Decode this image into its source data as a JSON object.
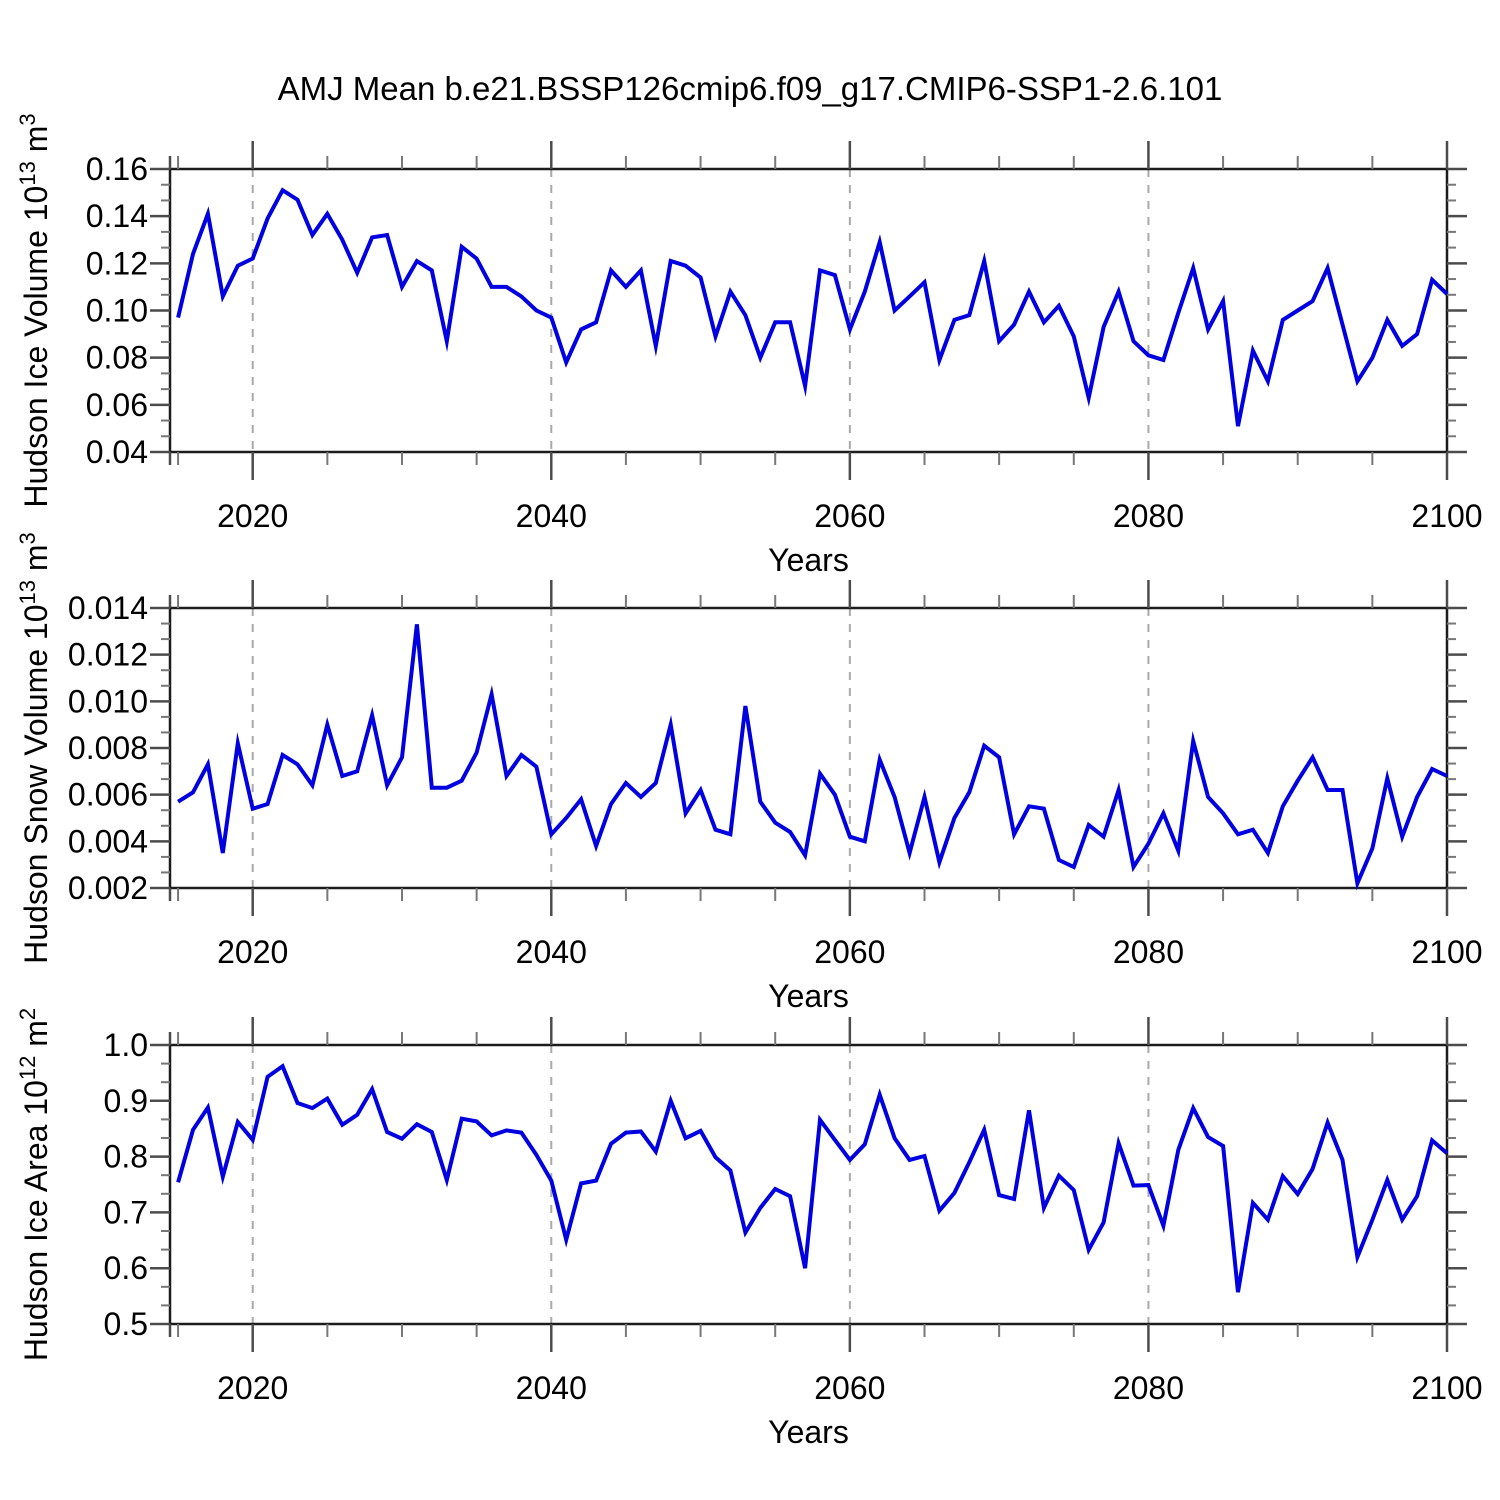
{
  "page": {
    "title": "AMJ Mean b.e21.BSSP126cmip6.f09_g17.CMIP6-SSP1-2.6.101",
    "background": "#ffffff",
    "text_color": "#000000"
  },
  "chart_data": [
    {
      "id": "hudson-ice-volume",
      "type": "line",
      "title": "AMJ Mean b.e21.BSSP126cmip6.f09_g17.CMIP6-SSP1-2.6.101",
      "ylabel": "Hudson Ice Volume 10^13 m^3",
      "xlabel": "Years",
      "x_start": 2015,
      "x_end": 2100,
      "x_step": 1,
      "values": [
        0.097,
        0.124,
        0.141,
        0.106,
        0.119,
        0.122,
        0.139,
        0.151,
        0.147,
        0.132,
        0.141,
        0.13,
        0.116,
        0.131,
        0.132,
        0.11,
        0.121,
        0.117,
        0.087,
        0.127,
        0.122,
        0.11,
        0.11,
        0.106,
        0.1,
        0.097,
        0.078,
        0.092,
        0.095,
        0.117,
        0.11,
        0.117,
        0.085,
        0.121,
        0.119,
        0.114,
        0.089,
        0.108,
        0.098,
        0.08,
        0.095,
        0.095,
        0.068,
        0.117,
        0.115,
        0.092,
        0.108,
        0.129,
        0.1,
        0.106,
        0.112,
        0.079,
        0.096,
        0.098,
        0.121,
        0.087,
        0.094,
        0.108,
        0.095,
        0.102,
        0.089,
        0.063,
        0.093,
        0.108,
        0.087,
        0.081,
        0.079,
        0.099,
        0.118,
        0.092,
        0.104,
        0.051,
        0.083,
        0.07,
        0.096,
        0.1,
        0.104,
        0.118,
        0.094,
        0.07,
        0.08,
        0.096,
        0.085,
        0.09,
        0.113,
        0.107
      ],
      "ylim": [
        0.04,
        0.16
      ],
      "xlim": [
        2014.46,
        2100
      ],
      "yticks": [
        0.04,
        0.06,
        0.08,
        0.1,
        0.12,
        0.14,
        0.16
      ],
      "ytick_labels": [
        "0.04",
        "0.06",
        "0.08",
        "0.10",
        "0.12",
        "0.14",
        "0.16"
      ],
      "xticks": [
        2020,
        2040,
        2060,
        2080,
        2100
      ],
      "xtick_labels": [
        "2020",
        "2040",
        "2060",
        "2080",
        "2100"
      ],
      "x_minor_step": 5,
      "y_minor_divisions": 3,
      "gridline_years": [
        2020,
        2040,
        2060,
        2080
      ],
      "grid_on": true,
      "legend": "none",
      "line_color": "#0000e0",
      "grid_color": "#a9a9a9",
      "axis_color": "#1c1c1c",
      "tick_color": "#4c4c4c"
    },
    {
      "id": "hudson-snow-volume",
      "type": "line",
      "title": "",
      "ylabel": "Hudson Snow Volume 10^13 m^3",
      "xlabel": "Years",
      "x_start": 2015,
      "x_end": 2100,
      "x_step": 1,
      "values": [
        0.0057,
        0.0061,
        0.0073,
        0.0035,
        0.0082,
        0.0054,
        0.0056,
        0.0077,
        0.0073,
        0.0064,
        0.009,
        0.0068,
        0.007,
        0.0094,
        0.0064,
        0.0076,
        0.0133,
        0.0063,
        0.0063,
        0.0066,
        0.0078,
        0.0103,
        0.0068,
        0.0077,
        0.0072,
        0.0043,
        0.005,
        0.0058,
        0.0038,
        0.0056,
        0.0065,
        0.0059,
        0.0065,
        0.009,
        0.0052,
        0.0062,
        0.0045,
        0.0043,
        0.0098,
        0.0057,
        0.0048,
        0.0044,
        0.0034,
        0.0069,
        0.006,
        0.0042,
        0.004,
        0.0075,
        0.0059,
        0.0035,
        0.0059,
        0.0031,
        0.005,
        0.0061,
        0.0081,
        0.0076,
        0.0043,
        0.0055,
        0.0054,
        0.0032,
        0.0029,
        0.0047,
        0.0042,
        0.0062,
        0.0029,
        0.0039,
        0.0052,
        0.0036,
        0.0083,
        0.0059,
        0.0052,
        0.0043,
        0.0045,
        0.0035,
        0.0055,
        0.0066,
        0.0076,
        0.0062,
        0.0062,
        0.0022,
        0.0037,
        0.0067,
        0.0042,
        0.0059,
        0.0071,
        0.0068
      ],
      "ylim": [
        0.002,
        0.014
      ],
      "xlim": [
        2014.46,
        2100
      ],
      "yticks": [
        0.002,
        0.004,
        0.006,
        0.008,
        0.01,
        0.012,
        0.014
      ],
      "ytick_labels": [
        "0.002",
        "0.004",
        "0.006",
        "0.008",
        "0.010",
        "0.012",
        "0.014"
      ],
      "xticks": [
        2020,
        2040,
        2060,
        2080,
        2100
      ],
      "xtick_labels": [
        "2020",
        "2040",
        "2060",
        "2080",
        "2100"
      ],
      "x_minor_step": 5,
      "y_minor_divisions": 3,
      "gridline_years": [
        2020,
        2040,
        2060,
        2080
      ],
      "grid_on": true,
      "legend": "none",
      "line_color": "#0000e0",
      "grid_color": "#a9a9a9",
      "axis_color": "#1c1c1c",
      "tick_color": "#4c4c4c"
    },
    {
      "id": "hudson-ice-area",
      "type": "line",
      "title": "",
      "ylabel": "Hudson Ice Area 10^12 m^2",
      "xlabel": "Years",
      "x_start": 2015,
      "x_end": 2100,
      "x_step": 1,
      "values": [
        0.754,
        0.848,
        0.888,
        0.764,
        0.862,
        0.83,
        0.943,
        0.962,
        0.896,
        0.887,
        0.904,
        0.857,
        0.875,
        0.921,
        0.844,
        0.832,
        0.858,
        0.844,
        0.758,
        0.868,
        0.863,
        0.838,
        0.847,
        0.843,
        0.803,
        0.757,
        0.651,
        0.752,
        0.757,
        0.823,
        0.843,
        0.845,
        0.809,
        0.9,
        0.833,
        0.846,
        0.799,
        0.775,
        0.664,
        0.708,
        0.742,
        0.729,
        0.6,
        0.866,
        0.83,
        0.794,
        0.822,
        0.911,
        0.833,
        0.794,
        0.801,
        0.703,
        0.735,
        0.79,
        0.848,
        0.731,
        0.724,
        0.883,
        0.708,
        0.766,
        0.74,
        0.633,
        0.682,
        0.824,
        0.748,
        0.749,
        0.676,
        0.812,
        0.887,
        0.835,
        0.819,
        0.557,
        0.717,
        0.687,
        0.765,
        0.733,
        0.778,
        0.861,
        0.794,
        0.62,
        0.687,
        0.758,
        0.687,
        0.729,
        0.829,
        0.806
      ],
      "ylim": [
        0.5,
        1.0
      ],
      "xlim": [
        2014.46,
        2100
      ],
      "yticks": [
        0.5,
        0.6,
        0.7,
        0.8,
        0.9,
        1.0
      ],
      "ytick_labels": [
        "0.5",
        "0.6",
        "0.7",
        "0.8",
        "0.9",
        "1.0"
      ],
      "xticks": [
        2020,
        2040,
        2060,
        2080,
        2100
      ],
      "xtick_labels": [
        "2020",
        "2040",
        "2060",
        "2080",
        "2100"
      ],
      "x_minor_step": 5,
      "y_minor_divisions": 3,
      "gridline_years": [
        2020,
        2040,
        2060,
        2080
      ],
      "grid_on": true,
      "legend": "none",
      "line_color": "#0000e0",
      "grid_color": "#a9a9a9",
      "axis_color": "#1c1c1c",
      "tick_color": "#4c4c4c"
    }
  ]
}
